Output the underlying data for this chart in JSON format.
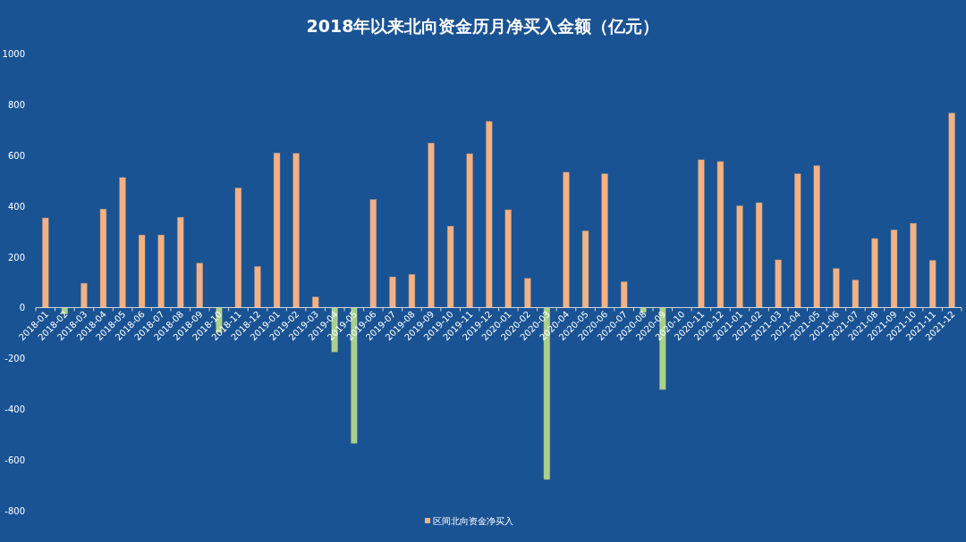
{
  "chart_data": {
    "type": "bar",
    "title": "2018年以来北向资金历月净买入金额（亿元）",
    "categories": [
      "2018-01",
      "2018-02",
      "2018-03",
      "2018-04",
      "2018-05",
      "2018-06",
      "2018-07",
      "2018-08",
      "2018-09",
      "2018-10",
      "2018-11",
      "2018-12",
      "2019-01",
      "2019-02",
      "2019-03",
      "2019-04",
      "2019-05",
      "2019-06",
      "2019-07",
      "2019-08",
      "2019-09",
      "2019-10",
      "2019-11",
      "2019-12",
      "2020-01",
      "2020-02",
      "2020-03",
      "2020-04",
      "2020-05",
      "2020-06",
      "2020-07",
      "2020-08",
      "2020-09",
      "2020-10",
      "2020-11",
      "2020-12",
      "2021-01",
      "2021-02",
      "2021-03",
      "2021-04",
      "2021-05",
      "2021-06",
      "2021-07",
      "2021-08",
      "2021-09",
      "2021-10",
      "2021-11",
      "2021-12"
    ],
    "series": [
      {
        "name": "区间北向资金净买入",
        "color": "#f4b183",
        "values": [
          353,
          -26,
          96,
          388,
          512,
          286,
          286,
          356,
          175,
          -98,
          471,
          162,
          609,
          607,
          42,
          -175,
          -535,
          426,
          121,
          131,
          648,
          321,
          606,
          733,
          385,
          115,
          -677,
          533,
          302,
          527,
          102,
          -20,
          -323,
          0,
          582,
          575,
          401,
          413,
          188,
          527,
          559,
          154,
          109,
          272,
          306,
          332,
          186,
          766
        ],
        "colors": [
          "#f4b183",
          "#a9d18e",
          "#f4b183",
          "#f4b183",
          "#f4b183",
          "#f4b183",
          "#f4b183",
          "#f4b183",
          "#f4b183",
          "#a9d18e",
          "#f4b183",
          "#f4b183",
          "#f4b183",
          "#f4b183",
          "#f4b183",
          "#a9d18e",
          "#a9d18e",
          "#f4b183",
          "#f4b183",
          "#f4b183",
          "#f4b183",
          "#f4b183",
          "#f4b183",
          "#f4b183",
          "#f4b183",
          "#f4b183",
          "#a9d18e",
          "#f4b183",
          "#f4b183",
          "#f4b183",
          "#f4b183",
          "#a9d18e",
          "#a9d18e",
          "#f4b183",
          "#f4b183",
          "#f4b183",
          "#f4b183",
          "#f4b183",
          "#f4b183",
          "#f4b183",
          "#f4b183",
          "#f4b183",
          "#f4b183",
          "#f4b183",
          "#f4b183",
          "#f4b183",
          "#f4b183",
          "#f4b183"
        ]
      }
    ],
    "ylim": [
      -800,
      1000
    ],
    "yticks": [
      -800,
      -600,
      -400,
      -200,
      0,
      200,
      400,
      600,
      800,
      1000
    ],
    "grid": false,
    "legend": "bottom"
  }
}
